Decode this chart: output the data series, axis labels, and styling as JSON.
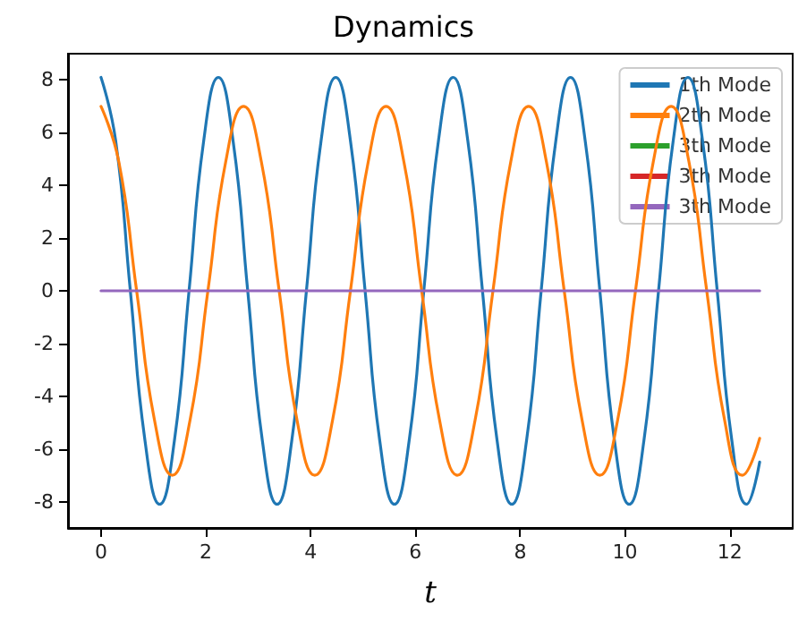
{
  "chart_data": {
    "type": "line",
    "title": "Dynamics",
    "xlabel": "t",
    "xlim": [
      -0.63,
      13.2
    ],
    "ylim": [
      -9,
      9
    ],
    "xticks": [
      0,
      2,
      4,
      6,
      8,
      10,
      12
    ],
    "yticks": [
      -8,
      -6,
      -4,
      -2,
      0,
      2,
      4,
      6,
      8
    ],
    "grid": false,
    "legend": "top right",
    "marker": "none",
    "line_style": "solid",
    "series": [
      {
        "name": "1th Mode",
        "color": "#1f77b4",
        "x": [
          0,
          0.28,
          0.56,
          0.84,
          1.12,
          1.4,
          1.68,
          1.96,
          2.24,
          2.52,
          2.8,
          3.08,
          3.36,
          3.64,
          3.92,
          4.2,
          4.48,
          4.76,
          5.04,
          5.32,
          5.6,
          5.88,
          6.16,
          6.44,
          6.72,
          7.0,
          7.28,
          7.56,
          7.84,
          8.12,
          8.4,
          8.68,
          8.96,
          9.24,
          9.52,
          9.8,
          10.08,
          10.36,
          10.64,
          10.92,
          11.2,
          11.48,
          11.76,
          12.04,
          12.32,
          12.57
        ],
        "values": [
          8.1,
          5.7,
          0,
          -5.7,
          -8.1,
          -5.7,
          0,
          5.7,
          8.1,
          5.7,
          0,
          -5.7,
          -8.1,
          -5.7,
          0,
          5.7,
          8.1,
          5.7,
          0,
          -5.7,
          -8.1,
          -5.7,
          0,
          5.7,
          8.1,
          5.7,
          0,
          -5.7,
          -8.1,
          -5.7,
          0,
          5.7,
          8.1,
          5.7,
          0,
          -5.7,
          -8.1,
          -5.7,
          0,
          5.7,
          8.1,
          5.7,
          0,
          -5.7,
          -8.1,
          -6.5
        ]
      },
      {
        "name": "2th Mode",
        "color": "#ff7f0e",
        "x": [
          0,
          0.34,
          0.68,
          1.02,
          1.36,
          1.7,
          2.04,
          2.38,
          2.72,
          3.06,
          3.4,
          3.74,
          4.08,
          4.42,
          4.76,
          5.1,
          5.44,
          5.78,
          6.12,
          6.46,
          6.8,
          7.14,
          7.48,
          7.82,
          8.16,
          8.5,
          8.84,
          9.18,
          9.52,
          9.86,
          10.2,
          10.54,
          10.88,
          11.22,
          11.56,
          11.9,
          12.24,
          12.57
        ],
        "values": [
          7,
          4.9,
          0,
          -4.9,
          -7,
          -4.9,
          0,
          4.9,
          7,
          4.9,
          0,
          -4.9,
          -7,
          -4.9,
          0,
          4.9,
          7,
          4.9,
          0,
          -4.9,
          -7,
          -4.9,
          0,
          4.9,
          7,
          4.9,
          0,
          -4.9,
          -7,
          -4.9,
          0,
          4.9,
          7,
          4.9,
          0,
          -4.9,
          -7,
          -5.6
        ]
      },
      {
        "name": "3th Mode",
        "color": "#2ca02c"
      },
      {
        "name": "3th Mode",
        "color": "#d62728"
      },
      {
        "name": "3th Mode",
        "color": "#9467bd",
        "x": [
          0,
          12.57
        ],
        "values": [
          0,
          0
        ]
      }
    ]
  }
}
